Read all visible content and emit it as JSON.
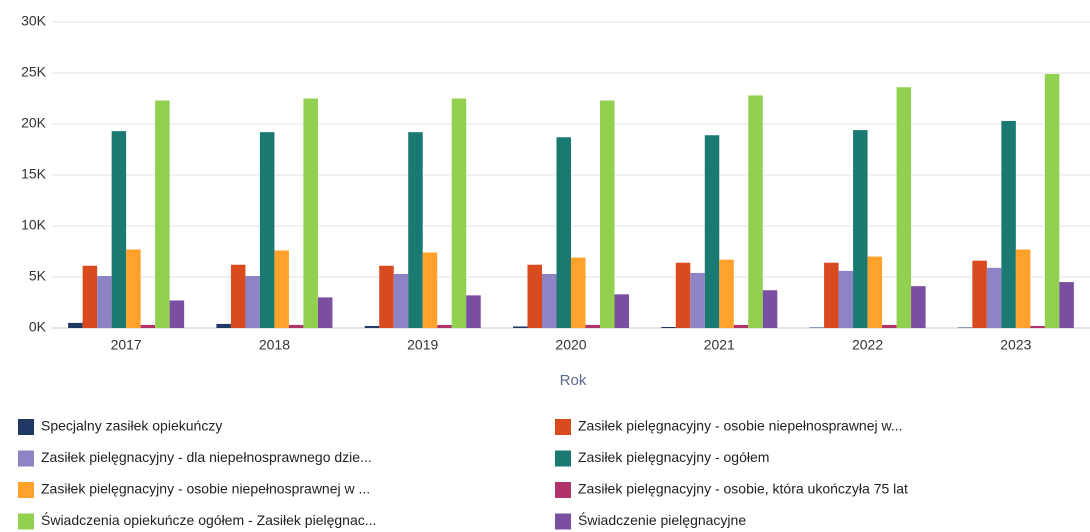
{
  "chart_data": {
    "type": "bar",
    "x_label": "Rok",
    "categories": [
      "2017",
      "2018",
      "2019",
      "2020",
      "2021",
      "2022",
      "2023"
    ],
    "ylim": [
      0,
      30000
    ],
    "yticks": [
      {
        "value": 0,
        "label": "0K"
      },
      {
        "value": 5000,
        "label": "5K"
      },
      {
        "value": 10000,
        "label": "10K"
      },
      {
        "value": 15000,
        "label": "15K"
      },
      {
        "value": 20000,
        "label": "20K"
      },
      {
        "value": 25000,
        "label": "25K"
      },
      {
        "value": 30000,
        "label": "30K"
      }
    ],
    "grid": true,
    "series": [
      {
        "name": "Specjalny zasiłek opiekuńczy",
        "color": "#1f3864",
        "values": [
          500,
          400,
          200,
          150,
          100,
          50,
          50
        ]
      },
      {
        "name": "Zasiłek pielęgnacyjny -  osobie niepełnosprawnej w...",
        "color": "#d94a1e",
        "values": [
          6100,
          6200,
          6100,
          6200,
          6400,
          6400,
          6600
        ]
      },
      {
        "name": "Zasiłek pielęgnacyjny - dla niepełnosprawnego dzie...",
        "color": "#8c84c4",
        "values": [
          5100,
          5100,
          5300,
          5300,
          5400,
          5600,
          5900
        ]
      },
      {
        "name": "Zasiłek pielęgnacyjny - ogółem",
        "color": "#1a7a72",
        "values": [
          19300,
          19200,
          19200,
          18700,
          18900,
          19400,
          20300
        ]
      },
      {
        "name": "Zasiłek pielęgnacyjny - osobie niepełnosprawnej w ...",
        "color": "#ffa12b",
        "values": [
          7700,
          7600,
          7400,
          6900,
          6700,
          7000,
          7700
        ]
      },
      {
        "name": "Zasiłek pielęgnacyjny - osobie, która ukończyła 75 lat",
        "color": "#b0336b",
        "values": [
          300,
          300,
          300,
          300,
          300,
          300,
          200
        ]
      },
      {
        "name": "Świadczenia opiekuńcze ogółem - Zasiłek pielęgnac...",
        "color": "#92d050",
        "values": [
          22300,
          22500,
          22500,
          22300,
          22800,
          23600,
          24900
        ]
      },
      {
        "name": "Świadczenie pielęgnacyjne",
        "color": "#7a4ea0",
        "values": [
          2700,
          3000,
          3200,
          3300,
          3700,
          4100,
          4500
        ]
      }
    ]
  }
}
